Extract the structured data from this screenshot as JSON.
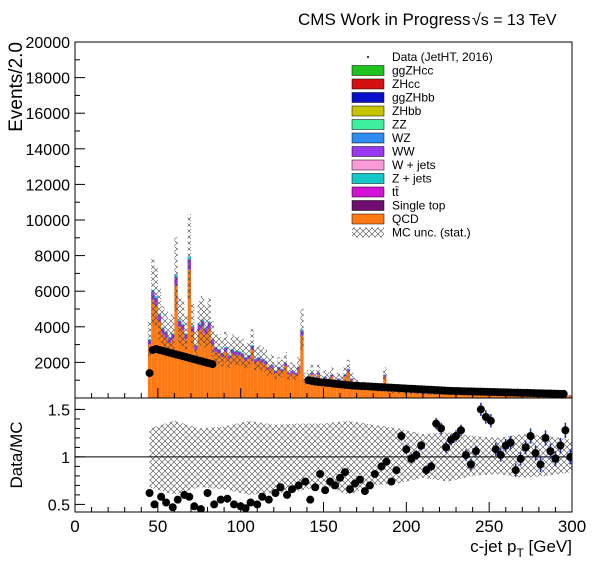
{
  "header": {
    "title": "CMS Work in Progress",
    "energy": "√s = 13 TeV"
  },
  "chart_data": [
    {
      "panel": "main",
      "type": "bar",
      "stacked": true,
      "ylabel": "Events/2.0",
      "xlim": [
        0,
        300
      ],
      "ylim": [
        0,
        20000
      ],
      "yticks": [
        2000,
        4000,
        6000,
        8000,
        10000,
        12000,
        14000,
        16000,
        18000,
        20000
      ],
      "bin_width": 2,
      "x": [
        45,
        47,
        49,
        51,
        53,
        55,
        57,
        59,
        61,
        63,
        65,
        67,
        69,
        71,
        73,
        75,
        77,
        79,
        81,
        83,
        85,
        87,
        89,
        91,
        93,
        95,
        97,
        99,
        101,
        103,
        105,
        107,
        109,
        111,
        113,
        115,
        117,
        119,
        121,
        123,
        125,
        127,
        129,
        131,
        133,
        135,
        137,
        139,
        141,
        143,
        145,
        147,
        149,
        151,
        153,
        155,
        157,
        159,
        161,
        163,
        165,
        167,
        169,
        171,
        173,
        175,
        177,
        179,
        181,
        183,
        185,
        187,
        189,
        191,
        193,
        195,
        197,
        199,
        201,
        203,
        205,
        207,
        209,
        211,
        213,
        215,
        217,
        219,
        221,
        223,
        225,
        227,
        229,
        231,
        233,
        235,
        237,
        239,
        241,
        243,
        245,
        247,
        249,
        251,
        253,
        255,
        257,
        259,
        261,
        263,
        265,
        267,
        269,
        271,
        273,
        275,
        277,
        279,
        281,
        283,
        285,
        287,
        289,
        291,
        293,
        295,
        297,
        299
      ],
      "series": [
        {
          "name": "QCD",
          "values": [
            3000,
            5500,
            5200,
            4300,
            3600,
            3400,
            3100,
            3300,
            6300,
            4000,
            3800,
            3300,
            7200,
            3700,
            2700,
            3800,
            4000,
            3600,
            3900,
            3000,
            2600,
            2500,
            2300,
            2600,
            2200,
            2500,
            2400,
            2400,
            2300,
            2100,
            2200,
            2700,
            2000,
            2100,
            2000,
            1900,
            1600,
            1700,
            1400,
            1600,
            1500,
            1800,
            1300,
            1400,
            1300,
            1600,
            3500,
            1000,
            1100,
            1300,
            1100,
            1300,
            900,
            1100,
            1000,
            1200,
            900,
            1000,
            900,
            1200,
            1500,
            1000,
            800,
            700,
            600,
            650,
            600,
            550,
            500,
            450,
            450,
            1200,
            400,
            380,
            360,
            340,
            330,
            320,
            300,
            290,
            280,
            270,
            260,
            250,
            240,
            230,
            225,
            220,
            215,
            210,
            205,
            200,
            195,
            190,
            185,
            180,
            178,
            176,
            174,
            172,
            170,
            168,
            166,
            164,
            162,
            160,
            158,
            156,
            154,
            152,
            150,
            148,
            146,
            144,
            142,
            140,
            138,
            136,
            134,
            132,
            130,
            128,
            126,
            124,
            122,
            120,
            118,
            116
          ]
        },
        {
          "name": "WW",
          "values": [
            250,
            450,
            420,
            350,
            300,
            280,
            260,
            270,
            520,
            330,
            310,
            270,
            600,
            300,
            230,
            320,
            330,
            300,
            320,
            250,
            220,
            210,
            190,
            210,
            180,
            210,
            200,
            200,
            190,
            170,
            180,
            220,
            170,
            170,
            160,
            160,
            130,
            140,
            120,
            130,
            120,
            150,
            110,
            120,
            110,
            130,
            280,
            80,
            90,
            110,
            90,
            110,
            75,
            90,
            85,
            100,
            75,
            85,
            75,
            100,
            120,
            85,
            65,
            60,
            50,
            55,
            50,
            45,
            40,
            38,
            38,
            100,
            34,
            32,
            30,
            28,
            27,
            26,
            25,
            24,
            23,
            22,
            22,
            21,
            20,
            19,
            19,
            18,
            18,
            17,
            17,
            17,
            16,
            16,
            15,
            15,
            15,
            15,
            14,
            14,
            14,
            14,
            14,
            14,
            13,
            13,
            13,
            13,
            13,
            13,
            12,
            12,
            12,
            12,
            12,
            12,
            11,
            11,
            11,
            11,
            11,
            11,
            10,
            10,
            10,
            10,
            10,
            10
          ]
        },
        {
          "name": "Z + jets",
          "values": [
            60,
            110,
            100,
            85,
            70,
            65,
            60,
            65,
            125,
            80,
            75,
            65,
            145,
            72,
            55,
            76,
            80,
            72,
            78,
            60,
            52,
            50,
            46,
            52,
            44,
            50,
            48,
            48,
            46,
            42,
            44,
            54,
            40,
            42,
            40,
            38,
            32,
            34,
            28,
            32,
            30,
            36,
            26,
            28,
            26,
            32,
            70,
            20,
            22,
            26,
            22,
            26,
            18,
            22,
            20,
            24,
            18,
            20,
            18,
            24,
            30,
            20,
            16,
            14,
            12,
            13,
            12,
            11,
            10,
            9,
            9,
            24,
            8,
            8,
            7,
            7,
            7,
            6,
            6,
            6,
            6,
            5,
            5,
            5,
            5,
            5,
            5,
            4,
            4,
            4,
            4,
            4,
            4,
            4,
            4,
            4,
            4,
            4,
            3,
            3,
            3,
            3,
            3,
            3,
            3,
            3,
            3,
            3,
            3,
            3,
            3,
            3,
            3,
            3,
            3,
            3,
            3,
            3,
            3,
            3,
            3,
            2,
            2,
            2,
            2,
            2,
            2,
            2
          ]
        }
      ],
      "data": {
        "name": "Data (JetHT, 2016)",
        "values": [
          1400,
          2700,
          2750,
          2700,
          2650,
          2600,
          2550,
          2500,
          2450,
          2400,
          2350,
          2300,
          2250,
          2200,
          2150,
          2100,
          2050,
          2000,
          1950,
          1900,
          0,
          0,
          0,
          0,
          0,
          0,
          0,
          0,
          0,
          0,
          0,
          0,
          0,
          0,
          0,
          0,
          0,
          0,
          0,
          0,
          0,
          0,
          0,
          0,
          0,
          0,
          0,
          0,
          1000,
          950,
          920,
          900,
          880,
          860,
          840,
          820,
          800,
          780,
          760,
          740,
          720,
          700,
          690,
          680,
          670,
          660,
          650,
          640,
          630,
          620,
          610,
          600,
          590,
          580,
          570,
          560,
          550,
          540,
          530,
          520,
          510,
          500,
          490,
          480,
          470,
          460,
          450,
          440,
          430,
          420,
          410,
          400,
          395,
          390,
          385,
          380,
          375,
          370,
          365,
          360,
          355,
          350,
          345,
          340,
          335,
          330,
          325,
          320,
          315,
          310,
          305,
          300,
          295,
          290,
          285,
          280,
          275,
          270,
          265,
          260,
          255,
          250,
          245,
          240,
          235,
          230
        ]
      },
      "uncertainty": {
        "name": "MC unc. (stat.)",
        "fraction": 0.3
      },
      "legend": {
        "placement": "top-right",
        "entries": [
          {
            "label": "Data (JetHT, 2016)",
            "style": "marker",
            "color": "#000000"
          },
          {
            "label": "ggZHcc",
            "style": "fill",
            "color": "#1ec31e"
          },
          {
            "label": "ZHcc",
            "style": "fill",
            "color": "#d41111"
          },
          {
            "label": "ggZHbb",
            "style": "fill",
            "color": "#0a10c8"
          },
          {
            "label": "ZHbb",
            "style": "fill",
            "color": "#c8c400"
          },
          {
            "label": "ZZ",
            "style": "fill",
            "color": "#3cf0a0"
          },
          {
            "label": "WZ",
            "style": "fill",
            "color": "#2f8cf0"
          },
          {
            "label": "WW",
            "style": "fill",
            "color": "#9a38f0"
          },
          {
            "label": "W + jets",
            "style": "fill",
            "color": "#fa9ad8"
          },
          {
            "label": "Z + jets",
            "style": "fill",
            "color": "#14c8c8"
          },
          {
            "label": "tt̄",
            "style": "fill",
            "color": "#d414d4"
          },
          {
            "label": "Single top",
            "style": "fill",
            "color": "#6e0e6e"
          },
          {
            "label": "QCD",
            "style": "fill",
            "color": "#ff7a14"
          },
          {
            "label": "MC unc. (stat.)",
            "style": "hatch",
            "color": "#555555"
          }
        ]
      }
    },
    {
      "panel": "ratio",
      "type": "scatter",
      "ylabel": "Data/MC",
      "xlabel": "c-jet p_T [GeV]",
      "xlim": [
        0,
        300
      ],
      "ylim": [
        0.42,
        1.62
      ],
      "yticks": [
        0.5,
        1,
        1.5
      ],
      "yticklabels": [
        "0.5",
        "1",
        "1.5"
      ],
      "xticks": [
        0,
        50,
        100,
        150,
        200,
        250,
        300
      ],
      "xticklabels": [
        "0",
        "50",
        "100",
        "150",
        "200",
        "250",
        "300"
      ],
      "reference_line": 1,
      "points": {
        "x": [
          45,
          48,
          52,
          55,
          59,
          62,
          66,
          69,
          72,
          76,
          80,
          84,
          88,
          92,
          96,
          100,
          103,
          106,
          110,
          113,
          117,
          121,
          124,
          128,
          131,
          135,
          139,
          142,
          145,
          148,
          151,
          154,
          157,
          160,
          163,
          166,
          169,
          172,
          175,
          178,
          181,
          185,
          188,
          191,
          194,
          197,
          200,
          203,
          206,
          209,
          212,
          215,
          218,
          221,
          224,
          227,
          230,
          233,
          236,
          239,
          242,
          245,
          248,
          251,
          254,
          257,
          260,
          263,
          266,
          269,
          272,
          275,
          278,
          281,
          284,
          287,
          290,
          293,
          296,
          299
        ],
        "y": [
          0.62,
          0.5,
          0.58,
          0.52,
          0.47,
          0.55,
          0.6,
          0.58,
          0.48,
          0.45,
          0.62,
          0.5,
          0.55,
          0.56,
          0.5,
          0.48,
          0.46,
          0.52,
          0.5,
          0.58,
          0.55,
          0.62,
          0.68,
          0.6,
          0.66,
          0.7,
          0.74,
          0.55,
          0.68,
          0.82,
          0.65,
          0.74,
          0.7,
          0.78,
          0.84,
          0.66,
          0.72,
          0.76,
          0.64,
          0.7,
          0.82,
          0.9,
          0.95,
          0.74,
          0.86,
          1.22,
          1.08,
          0.98,
          1.02,
          1.12,
          0.86,
          0.9,
          1.35,
          1.3,
          1.1,
          1.18,
          1.22,
          1.28,
          1.02,
          0.92,
          1.06,
          1.5,
          1.42,
          1.38,
          1.08,
          1.02,
          1.12,
          1.15,
          0.86,
          0.98,
          1.1,
          1.22,
          1.04,
          0.92,
          1.2,
          1.06,
          0.98,
          1.12,
          1.28,
          1.0
        ],
        "yerr": [
          0.03,
          0.03,
          0.03,
          0.03,
          0.03,
          0.03,
          0.03,
          0.03,
          0.03,
          0.03,
          0.03,
          0.03,
          0.03,
          0.03,
          0.03,
          0.03,
          0.03,
          0.03,
          0.03,
          0.03,
          0.03,
          0.03,
          0.03,
          0.03,
          0.03,
          0.03,
          0.03,
          0.03,
          0.03,
          0.03,
          0.03,
          0.03,
          0.03,
          0.03,
          0.03,
          0.03,
          0.03,
          0.03,
          0.03,
          0.03,
          0.03,
          0.04,
          0.04,
          0.04,
          0.04,
          0.05,
          0.05,
          0.05,
          0.05,
          0.05,
          0.05,
          0.05,
          0.06,
          0.06,
          0.06,
          0.06,
          0.06,
          0.06,
          0.06,
          0.06,
          0.06,
          0.07,
          0.07,
          0.07,
          0.07,
          0.07,
          0.07,
          0.07,
          0.07,
          0.07,
          0.07,
          0.08,
          0.08,
          0.08,
          0.08,
          0.08,
          0.08,
          0.08,
          0.08,
          0.08
        ]
      },
      "uncertainty_band": {
        "x": [
          45,
          60,
          75,
          90,
          105,
          120,
          135,
          150,
          165,
          180,
          195,
          210,
          225,
          240,
          255,
          270,
          285,
          300
        ],
        "lo": [
          0.68,
          0.6,
          0.68,
          0.66,
          0.6,
          0.62,
          0.64,
          0.7,
          0.6,
          0.7,
          0.72,
          0.78,
          0.74,
          0.8,
          0.82,
          0.78,
          0.8,
          0.84
        ],
        "hi": [
          1.3,
          1.38,
          1.3,
          1.32,
          1.38,
          1.34,
          1.35,
          1.35,
          1.38,
          1.34,
          1.3,
          1.24,
          1.26,
          1.22,
          1.2,
          1.24,
          1.22,
          1.18
        ]
      }
    }
  ]
}
